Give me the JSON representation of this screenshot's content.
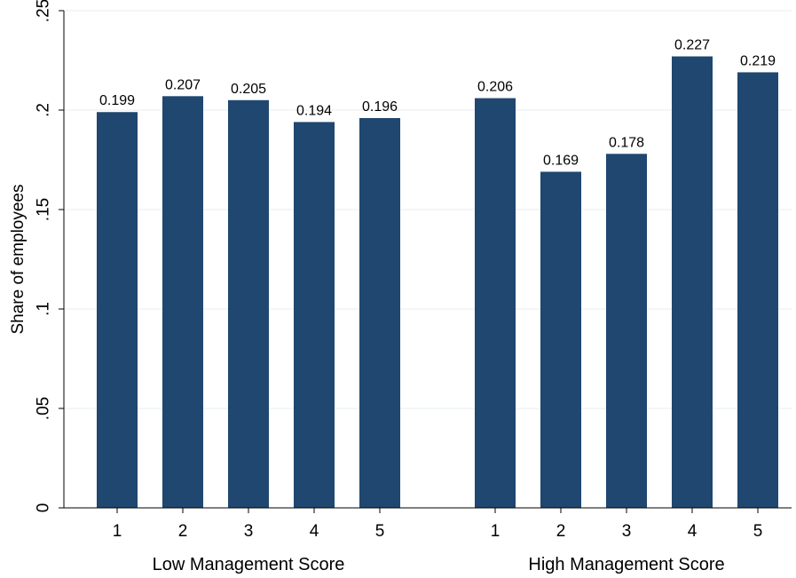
{
  "chart_data": {
    "type": "bar",
    "ylabel": "Share of employees",
    "ylim": [
      0,
      0.25
    ],
    "yticks": [
      {
        "value": 0,
        "label": "0"
      },
      {
        "value": 0.05,
        "label": ".05"
      },
      {
        "value": 0.1,
        "label": ".1"
      },
      {
        "value": 0.15,
        "label": ".15"
      },
      {
        "value": 0.2,
        "label": ".2"
      },
      {
        "value": 0.25,
        "label": ".25"
      }
    ],
    "grid": true,
    "bar_color": "#1f4770",
    "grid_color": "#e6eef0",
    "groups": [
      {
        "name": "Low Management Score",
        "categories": [
          "1",
          "2",
          "3",
          "4",
          "5"
        ],
        "values": [
          0.199,
          0.207,
          0.205,
          0.194,
          0.196
        ],
        "value_labels": [
          "0.199",
          "0.207",
          "0.205",
          "0.194",
          "0.196"
        ]
      },
      {
        "name": "High Management Score",
        "categories": [
          "1",
          "2",
          "3",
          "4",
          "5"
        ],
        "values": [
          0.206,
          0.169,
          0.178,
          0.227,
          0.219
        ],
        "value_labels": [
          "0.206",
          "0.169",
          "0.178",
          "0.227",
          "0.219"
        ]
      }
    ]
  }
}
